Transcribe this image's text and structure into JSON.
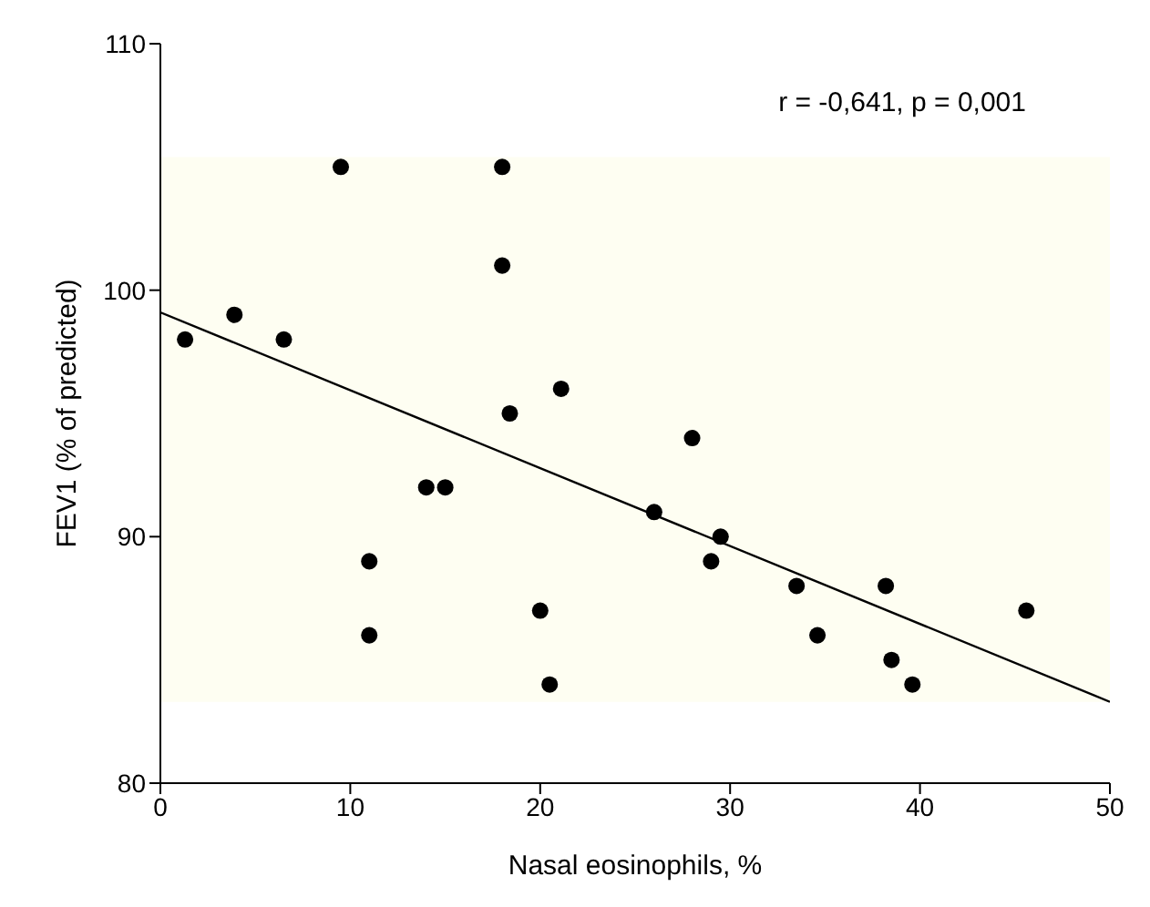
{
  "chart_data": {
    "type": "scatter",
    "xlabel": "Nasal eosinophils, %",
    "ylabel": "FEV1 (% of predicted)",
    "annotations": [
      "r = -0,641, p = 0,001"
    ],
    "xlim": [
      0,
      50
    ],
    "xticks": [
      0,
      10,
      20,
      30,
      40,
      50
    ],
    "ylim": [
      80,
      110
    ],
    "yticks": [
      80,
      90,
      100,
      110
    ],
    "grid": false,
    "marker": "circle",
    "bands": [
      {
        "axis": "y",
        "from": 83.3,
        "to": 105.4,
        "color": "#fefef2"
      }
    ],
    "series": [
      {
        "color": "#000000",
        "x": [
          1.3,
          3.9,
          6.5,
          9.5,
          11,
          11,
          14,
          15,
          18,
          18,
          18.4,
          20,
          20.5,
          21.1,
          26,
          28,
          29,
          29.5,
          33.5,
          34.6,
          38.2,
          38.5,
          39.6,
          45.6
        ],
        "values": [
          98,
          99,
          98,
          105,
          89,
          86,
          92,
          92,
          105,
          101,
          95,
          87,
          84,
          96,
          91,
          94,
          89,
          90,
          88,
          86,
          88,
          85,
          84,
          87
        ]
      },
      {
        "type": "line",
        "color": "#000000",
        "x": [
          0,
          50
        ],
        "values": [
          99.1,
          83.3
        ],
        "marker": "none"
      }
    ]
  }
}
